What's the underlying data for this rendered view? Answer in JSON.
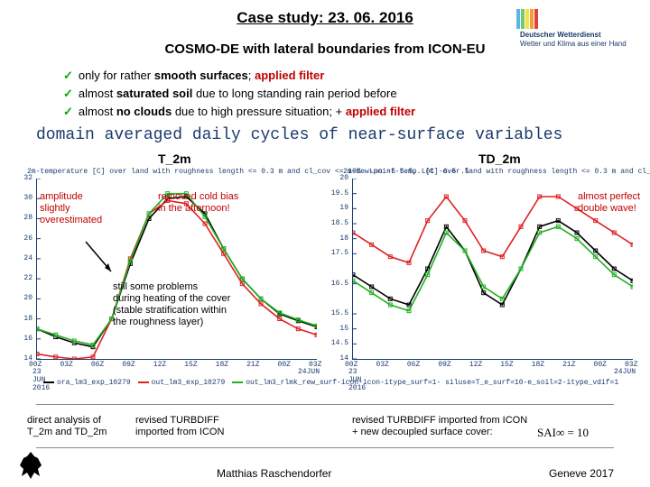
{
  "header": {
    "title": "Case study: 23. 06. 2016",
    "subtitle": "COSMO-DE with lateral boundaries from ICON-EU",
    "logo_top": "Deutscher Wetterdienst",
    "logo_bottom": "Wetter und Klima aus einer Hand",
    "logo_bar_colors": [
      "#5fb4e6",
      "#6acf6a",
      "#f5e04a",
      "#f0a030",
      "#e04040"
    ]
  },
  "bullets": [
    {
      "pre": "only for rather ",
      "bold": "smooth surfaces",
      "post": "; ",
      "red": "applied filter"
    },
    {
      "pre": "almost ",
      "bold": "saturated soil",
      "post": " due to long standing rain period before",
      "red": ""
    },
    {
      "pre": "almost ",
      "bold": "no clouds",
      "post": " due to high pressure situation; + ",
      "red": "applied filter"
    }
  ],
  "domain_title": "domain averaged daily cycles of near-surface variables",
  "left": {
    "label": "T_2m",
    "head": "2m-temperature [C] over land with roughness length <= 0.3 m and cl_cov <= 10%  Lon -5 5.5, Lot -6.5 .5",
    "ylim": [
      14,
      32
    ],
    "yticks": [
      14,
      16,
      18,
      20,
      22,
      24,
      26,
      28,
      30,
      32
    ],
    "xticks": [
      "00Z",
      "03Z",
      "06Z",
      "09Z",
      "12Z",
      "15Z",
      "18Z",
      "21Z",
      "00Z",
      "03Z"
    ],
    "date_l": "23\nJUN\n2016",
    "date_r": "24JUN",
    "series": {
      "black": {
        "color": "#000000",
        "y": [
          17,
          16.2,
          15.6,
          15.2,
          18,
          23.5,
          28,
          30,
          30.2,
          28.5,
          25,
          22,
          20,
          18.5,
          17.8,
          17.2
        ]
      },
      "red": {
        "color": "#e02020",
        "y": [
          14.5,
          14.2,
          14,
          14.2,
          18,
          24,
          28.5,
          29.8,
          29.5,
          27.5,
          24.5,
          21.5,
          19.5,
          18,
          17,
          16.4
        ]
      },
      "green": {
        "color": "#20b020",
        "y": [
          17,
          16.4,
          15.8,
          15.4,
          18,
          23.8,
          28.5,
          30.5,
          30.5,
          28.2,
          25,
          22,
          20,
          18.6,
          17.9,
          17.3
        ]
      }
    }
  },
  "right": {
    "label": "TD_2m",
    "head": "2m-dew-point-temp. [C] over land with roughness length <= 0.3 m and cl_cov <= 10%  Lon -5 5.5, Lot -6.5 .5",
    "ylim": [
      14,
      20
    ],
    "yticks": [
      14,
      14.5,
      15,
      15.5,
      16.5,
      17.5,
      18,
      18.5,
      19,
      19.5,
      20
    ],
    "xticks": [
      "00Z",
      "03Z",
      "06Z",
      "09Z",
      "12Z",
      "15Z",
      "18Z",
      "21Z",
      "00Z",
      "03Z"
    ],
    "date_l": "23\nJUN\n2016",
    "date_r": "24JUN",
    "series": {
      "black": {
        "color": "#000000",
        "y": [
          16.8,
          16.4,
          16.0,
          15.8,
          17.0,
          18.4,
          17.6,
          16.2,
          15.8,
          17.0,
          18.4,
          18.6,
          18.2,
          17.6,
          17.0,
          16.6
        ]
      },
      "red": {
        "color": "#e02020",
        "y": [
          18.2,
          17.8,
          17.4,
          17.2,
          18.6,
          19.4,
          18.6,
          17.6,
          17.4,
          18.4,
          19.4,
          19.4,
          19.0,
          18.6,
          18.2,
          17.8
        ]
      },
      "green": {
        "color": "#20b020",
        "y": [
          16.6,
          16.2,
          15.8,
          15.6,
          16.8,
          18.2,
          17.6,
          16.4,
          16.0,
          17.0,
          18.2,
          18.4,
          18.0,
          17.4,
          16.8,
          16.4
        ]
      }
    }
  },
  "annot": {
    "a1": "amplitude\nslightly\noverestimated",
    "a2": "removed cold bias\nin the afternoon!",
    "a3": "still some problems\nduring heating of the cover\n(stable stratification within\nthe roughness layer)",
    "a4": "almost perfect\ndouble wave!"
  },
  "legend": {
    "items": [
      {
        "color": "#000000",
        "label": "ora_lm3_exp_10279"
      },
      {
        "color": "#e02020",
        "label": "out_lm3_exp_10279"
      },
      {
        "color": "#20b020",
        "label": "out_lm3_rlmk_rew_surf-icon-icon-itype_surf=1- siluse=T_e_surf=10-e_soil=2-itype_vdif=1"
      }
    ]
  },
  "bottom": {
    "b1": "direct analysis of\nT_2m and TD_2m",
    "b2": "revised TURBDIFF\nimported from ICON",
    "b3": "revised TURBDIFF imported from ICON\n+ new decoupled surface cover:",
    "sai": "SAI∞ = 10"
  },
  "footer": {
    "l": "Matthias Raschendorfer",
    "r": "Geneve 2017"
  },
  "colors": {
    "axis": "#1a3a6e"
  }
}
